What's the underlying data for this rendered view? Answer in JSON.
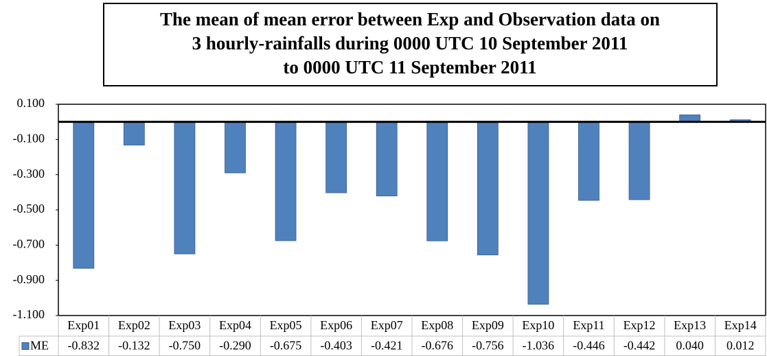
{
  "chart_data": {
    "type": "bar",
    "title": [
      "The mean of mean error between Exp and Observation data on",
      "3 hourly-rainfalls during 0000 UTC 10 September 2011",
      "to 0000 UTC 11 September 2011"
    ],
    "categories": [
      "Exp01",
      "Exp02",
      "Exp03",
      "Exp04",
      "Exp05",
      "Exp06",
      "Exp07",
      "Exp08",
      "Exp09",
      "Exp10",
      "Exp11",
      "Exp12",
      "Exp13",
      "Exp14"
    ],
    "series": [
      {
        "name": "ME",
        "color": "#4f81bd",
        "values": [
          -0.832,
          -0.132,
          -0.75,
          -0.29,
          -0.675,
          -0.403,
          -0.421,
          -0.676,
          -0.756,
          -1.036,
          -0.446,
          -0.442,
          0.04,
          0.012
        ],
        "value_labels": [
          "-0.832",
          "-0.132",
          "-0.750",
          "-0.290",
          "-0.675",
          "-0.403",
          "-0.421",
          "-0.676",
          "-0.756",
          "-1.036",
          "-0.446",
          "-0.442",
          "0.040",
          "0.012"
        ]
      }
    ],
    "ylim": [
      -1.1,
      0.1
    ],
    "yticks": [
      {
        "value": 0.1,
        "label": "0.100"
      },
      {
        "value": -0.1,
        "label": "-0.100"
      },
      {
        "value": -0.3,
        "label": "-0.300"
      },
      {
        "value": -0.5,
        "label": "-0.500"
      },
      {
        "value": -0.7,
        "label": "-0.700"
      },
      {
        "value": -0.9,
        "label": "-0.900"
      },
      {
        "value": -1.1,
        "label": "-1.100"
      }
    ],
    "grid": false,
    "data_table": true
  }
}
